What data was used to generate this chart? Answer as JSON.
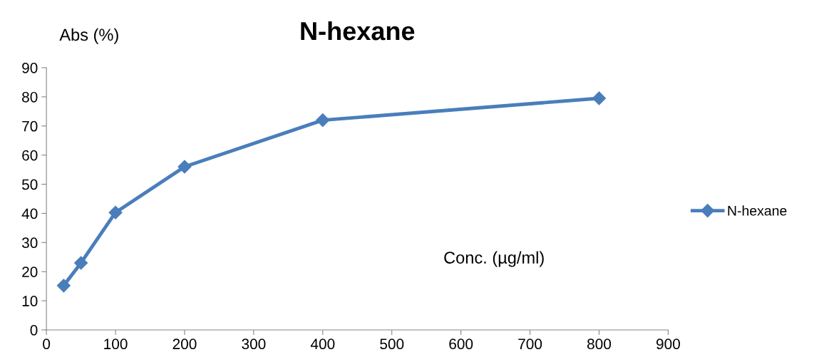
{
  "chart_data": {
    "type": "line",
    "title": "N-hexane",
    "xlabel": "Conc. (µg/ml)",
    "ylabel": "Abs (%)",
    "x": [
      25,
      50,
      100,
      200,
      400,
      800
    ],
    "series": [
      {
        "name": "N-hexane",
        "color": "#4a7ebb",
        "values": [
          15.2,
          23,
          40.3,
          56,
          72,
          79.5
        ]
      }
    ],
    "xlim": [
      0,
      900
    ],
    "xticks": [
      0,
      100,
      200,
      300,
      400,
      500,
      600,
      700,
      800,
      900
    ],
    "ylim": [
      0,
      90
    ],
    "yticks": [
      0,
      10,
      20,
      30,
      40,
      50,
      60,
      70,
      80,
      90
    ],
    "grid": false,
    "legend": "right",
    "marker": "diamond",
    "line_style": "solid"
  }
}
